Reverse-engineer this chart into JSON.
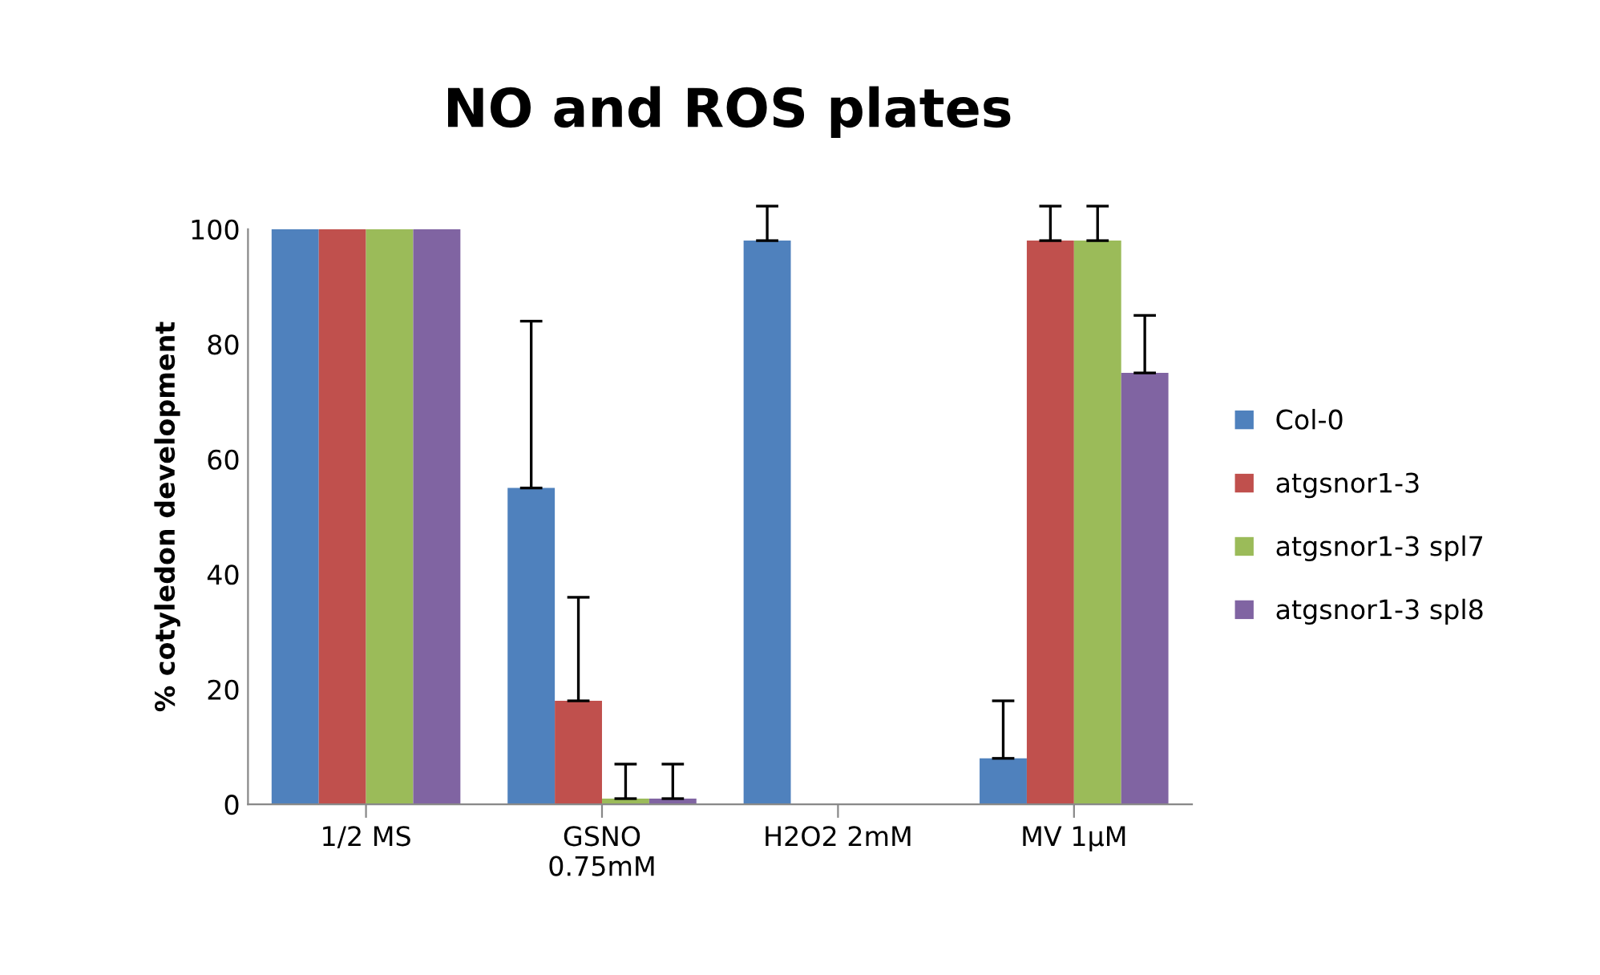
{
  "chart_data": {
    "type": "bar",
    "title": "NO and ROS plates",
    "ylabel": "% cotyledon development",
    "categories": [
      "1/2 MS",
      "GSNO\n0.75mM",
      "H2O2 2mM",
      "MV 1µM"
    ],
    "series": [
      {
        "name": "Col-0",
        "color": "#4f81bd",
        "values": [
          100,
          55,
          98,
          8
        ],
        "errors": [
          null,
          29,
          6,
          10
        ]
      },
      {
        "name": "atgsnor1-3",
        "color": "#c0504d",
        "values": [
          100,
          18,
          0,
          98
        ],
        "errors": [
          null,
          18,
          null,
          6
        ]
      },
      {
        "name": "atgsnor1-3 spl7",
        "color": "#9bbb59",
        "values": [
          100,
          1,
          0,
          98
        ],
        "errors": [
          null,
          6,
          null,
          6
        ]
      },
      {
        "name": "atgsnor1-3 spl8",
        "color": "#8064a2",
        "values": [
          100,
          1,
          0,
          75
        ],
        "errors": [
          null,
          6,
          null,
          10
        ]
      }
    ],
    "ylim": [
      0,
      100
    ],
    "yticks": [
      0,
      20,
      40,
      60,
      80,
      100
    ],
    "legend": "right"
  }
}
